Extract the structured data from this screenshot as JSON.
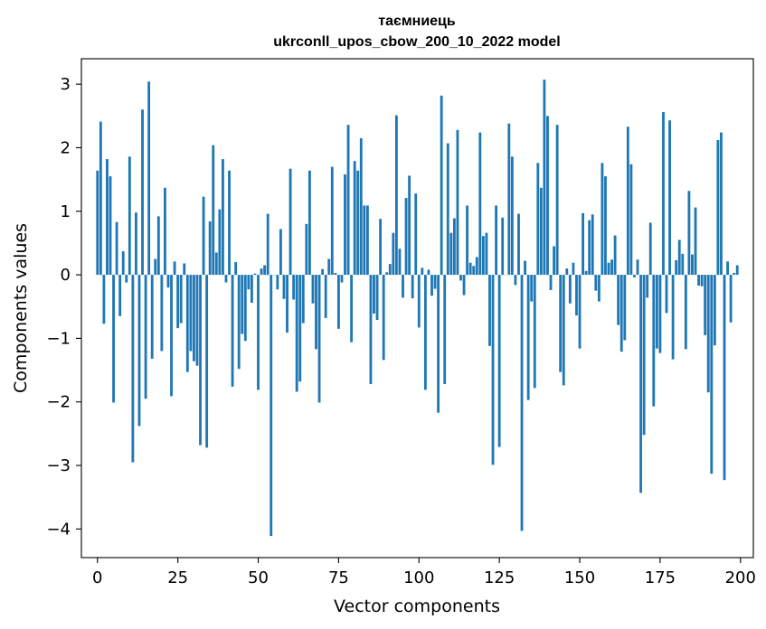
{
  "chart_data": {
    "type": "bar",
    "title_line1": "таємниець",
    "title_line2": "ukrconll_upos_cbow_200_10_2022 model",
    "xlabel": "Vector components",
    "ylabel": "Components values",
    "xlim": [
      -5,
      204
    ],
    "ylim": [
      -4.45,
      3.4
    ],
    "xticks": [
      0,
      25,
      50,
      75,
      100,
      125,
      150,
      175,
      200
    ],
    "xtick_labels": [
      "0",
      "25",
      "50",
      "75",
      "100",
      "125",
      "150",
      "175",
      "200"
    ],
    "yticks": [
      3,
      2,
      1,
      0,
      -1,
      -2,
      -3,
      -4
    ],
    "ytick_labels": [
      "3",
      "2",
      "1",
      "0",
      "−1",
      "−2",
      "−3",
      "−4"
    ],
    "bar_color": "#1f77b4",
    "grid": false,
    "x": [
      0,
      1,
      2,
      3,
      4,
      5,
      6,
      7,
      8,
      9,
      10,
      11,
      12,
      13,
      14,
      15,
      16,
      17,
      18,
      19,
      20,
      21,
      22,
      23,
      24,
      25,
      26,
      27,
      28,
      29,
      30,
      31,
      32,
      33,
      34,
      35,
      36,
      37,
      38,
      39,
      40,
      41,
      42,
      43,
      44,
      45,
      46,
      47,
      48,
      49,
      50,
      51,
      52,
      53,
      54,
      55,
      56,
      57,
      58,
      59,
      60,
      61,
      62,
      63,
      64,
      65,
      66,
      67,
      68,
      69,
      70,
      71,
      72,
      73,
      74,
      75,
      76,
      77,
      78,
      79,
      80,
      81,
      82,
      83,
      84,
      85,
      86,
      87,
      88,
      89,
      90,
      91,
      92,
      93,
      94,
      95,
      96,
      97,
      98,
      99,
      100,
      101,
      102,
      103,
      104,
      105,
      106,
      107,
      108,
      109,
      110,
      111,
      112,
      113,
      114,
      115,
      116,
      117,
      118,
      119,
      120,
      121,
      122,
      123,
      124,
      125,
      126,
      127,
      128,
      129,
      130,
      131,
      132,
      133,
      134,
      135,
      136,
      137,
      138,
      139,
      140,
      141,
      142,
      143,
      144,
      145,
      146,
      147,
      148,
      149,
      150,
      151,
      152,
      153,
      154,
      155,
      156,
      157,
      158,
      159,
      160,
      161,
      162,
      163,
      164,
      165,
      166,
      167,
      168,
      169,
      170,
      171,
      172,
      173,
      174,
      175,
      176,
      177,
      178,
      179,
      180,
      181,
      182,
      183,
      184,
      185,
      186,
      187,
      188,
      189,
      190,
      191,
      192,
      193,
      194,
      195,
      196,
      197,
      198,
      199
    ],
    "values": [
      1.64,
      2.41,
      -0.77,
      1.82,
      1.55,
      -2.01,
      0.83,
      -0.65,
      0.37,
      -0.12,
      1.86,
      -2.95,
      0.98,
      -2.38,
      2.6,
      -1.95,
      3.04,
      -1.32,
      0.25,
      0.92,
      -1.2,
      1.37,
      -0.2,
      -1.91,
      0.21,
      -0.84,
      -0.76,
      0.18,
      -1.53,
      -1.2,
      -1.36,
      -1.43,
      -2.68,
      1.23,
      -2.72,
      0.84,
      2.04,
      0.35,
      1.03,
      1.82,
      -0.12,
      1.64,
      -1.76,
      0.2,
      -1.48,
      -0.93,
      -1.04,
      -0.23,
      -0.44,
      0.02,
      -1.81,
      0.1,
      0.15,
      0.96,
      -4.11,
      0.0,
      -0.23,
      0.72,
      -0.38,
      -0.91,
      1.67,
      -0.39,
      -1.84,
      -1.68,
      -0.76,
      0.8,
      1.64,
      -0.45,
      -1.17,
      -2.01,
      0.09,
      -0.68,
      0.25,
      1.7,
      0.03,
      -0.85,
      -0.12,
      1.58,
      2.36,
      -1.06,
      1.79,
      1.64,
      2.15,
      1.09,
      1.09,
      -1.72,
      -0.61,
      -0.71,
      0.88,
      -1.34,
      0.04,
      0.17,
      0.66,
      2.51,
      0.41,
      -0.36,
      1.21,
      1.56,
      -0.37,
      1.28,
      -0.83,
      0.11,
      -1.81,
      0.08,
      -0.33,
      -0.22,
      -2.17,
      2.82,
      -1.72,
      2.07,
      0.66,
      0.89,
      2.28,
      -0.09,
      -0.32,
      1.09,
      0.19,
      0.14,
      0.28,
      2.24,
      0.61,
      0.66,
      -1.12,
      -2.99,
      1.09,
      -2.71,
      0.9,
      0.0,
      2.38,
      1.86,
      -0.16,
      0.96,
      -4.03,
      0.22,
      -1.97,
      -0.42,
      -1.78,
      1.76,
      1.37,
      3.07,
      2.5,
      -0.24,
      0.45,
      2.36,
      -1.53,
      -1.74,
      0.1,
      -0.45,
      0.19,
      -0.64,
      -1.16,
      0.97,
      0.06,
      0.86,
      0.95,
      -0.25,
      -0.42,
      1.76,
      1.55,
      0.19,
      0.24,
      0.62,
      -0.79,
      -1.21,
      -1.03,
      2.33,
      1.74,
      -0.04,
      0.24,
      -3.43,
      -2.52,
      -0.36,
      0.82,
      -2.07,
      -1.16,
      -1.23,
      2.56,
      -0.6,
      2.43,
      -1.33,
      0.23,
      0.55,
      0.33,
      -1.17,
      1.32,
      0.32,
      1.06,
      -0.17,
      -0.18,
      -0.95,
      -1.85,
      -3.13,
      -1.11,
      2.12,
      2.24,
      -3.23,
      0.21,
      -0.75,
      0.03,
      0.15
    ]
  }
}
